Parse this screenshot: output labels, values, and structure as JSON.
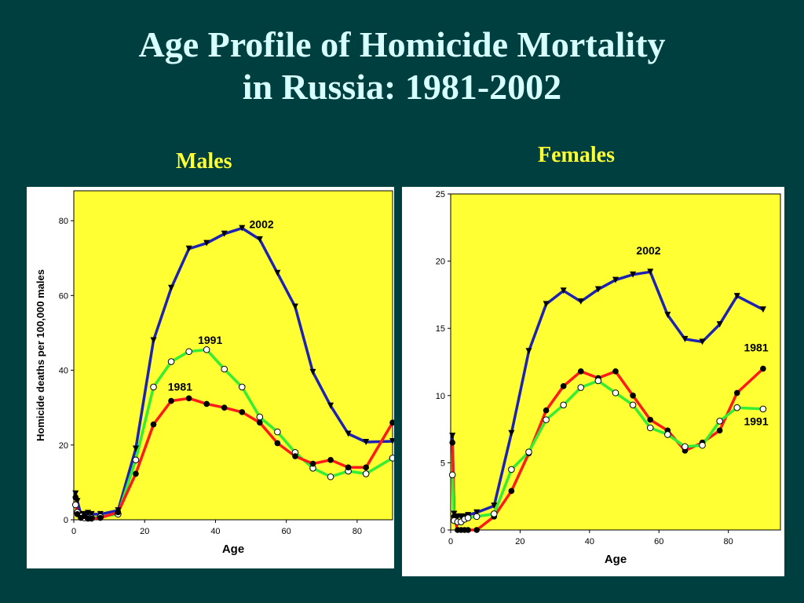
{
  "slide": {
    "title_line1": "Age Profile of Homicide Mortality",
    "title_line2": "in Russia: 1981-2002"
  },
  "chart_data": [
    {
      "type": "line",
      "subtitle": "Males",
      "xlabel": "Age",
      "ylabel": "Homicide deaths per 100,000 males",
      "xlim": [
        0,
        90
      ],
      "ylim": [
        0,
        88
      ],
      "xticks": [
        0,
        20,
        40,
        60,
        80
      ],
      "yticks": [
        0,
        20,
        40,
        60,
        80
      ],
      "plot_bg": "#ffff33",
      "series": [
        {
          "name": "2002",
          "color": "#1e22b4",
          "marker": "triangle-down",
          "x": [
            0.5,
            1,
            2,
            3,
            4,
            5,
            7.5,
            12.5,
            17.5,
            22.5,
            27.5,
            32.5,
            37.5,
            42.5,
            47.5,
            52.5,
            57.5,
            62.5,
            67.5,
            72.5,
            77.5,
            82.5,
            90
          ],
          "y": [
            7,
            5,
            1.5,
            1.5,
            1.8,
            1.5,
            1.5,
            2.5,
            19,
            48,
            62,
            72.5,
            74,
            76.5,
            78,
            75,
            66,
            57,
            39.5,
            30.5,
            23,
            20.8,
            21
          ]
        },
        {
          "name": "1991",
          "color": "#33ee33",
          "marker": "circle-open",
          "x": [
            0.5,
            1,
            2,
            3,
            4,
            5,
            7.5,
            12.5,
            17.5,
            22.5,
            27.5,
            32.5,
            37.5,
            42.5,
            47.5,
            52.5,
            57.5,
            62.5,
            67.5,
            72.5,
            77.5,
            82.5,
            90
          ],
          "y": [
            4,
            2,
            1,
            0.5,
            0.5,
            0.5,
            0.8,
            1.5,
            16,
            35.5,
            42.3,
            45,
            45.5,
            40.3,
            35.5,
            27.5,
            23.5,
            18,
            13.8,
            11.5,
            13,
            12.3,
            16.5
          ]
        },
        {
          "name": "1981",
          "color": "#ff1a1a",
          "marker": "circle-filled",
          "x": [
            0.5,
            1,
            2,
            3,
            4,
            5,
            7.5,
            12.5,
            17.5,
            22.5,
            27.5,
            32.5,
            37.5,
            42.5,
            47.5,
            52.5,
            57.5,
            62.5,
            67.5,
            72.5,
            77.5,
            82.5,
            90
          ],
          "y": [
            6,
            1.5,
            0.5,
            1,
            0.3,
            0.3,
            0.5,
            2,
            12.3,
            25.5,
            31.8,
            32.5,
            31,
            30,
            28.8,
            26,
            20.5,
            17,
            15,
            16,
            14,
            14,
            26
          ]
        }
      ],
      "annotations": [
        {
          "text": "2002",
          "x": 53,
          "y": 78
        },
        {
          "text": "1991",
          "x": 38.5,
          "y": 47
        },
        {
          "text": "1981",
          "x": 30,
          "y": 34.5
        }
      ]
    },
    {
      "type": "line",
      "subtitle": "Females",
      "xlabel": "Age",
      "ylabel": "",
      "xlim": [
        0,
        95
      ],
      "ylim": [
        0,
        25
      ],
      "xticks": [
        0,
        20,
        40,
        60,
        80
      ],
      "yticks": [
        0,
        5,
        10,
        15,
        20,
        25
      ],
      "plot_bg": "#ffff33",
      "series": [
        {
          "name": "2002",
          "color": "#1e22b4",
          "marker": "triangle-down",
          "x": [
            0.5,
            1,
            2,
            3,
            4,
            5,
            7.5,
            12.5,
            17.5,
            22.5,
            27.5,
            32.5,
            37.5,
            42.5,
            47.5,
            52.5,
            57.5,
            62.5,
            67.5,
            72.5,
            77.5,
            82.5,
            90
          ],
          "y": [
            7,
            1.2,
            1,
            1,
            1,
            1.1,
            1.3,
            1.8,
            7.2,
            13.3,
            16.8,
            17.8,
            17,
            17.9,
            18.6,
            19,
            19.2,
            16,
            14.2,
            14,
            15.3,
            17.4,
            16.4
          ]
        },
        {
          "name": "1981",
          "color": "#ff1a1a",
          "marker": "circle-filled",
          "x": [
            0.5,
            1,
            2,
            3,
            4,
            5,
            7.5,
            12.5,
            17.5,
            22.5,
            27.5,
            32.5,
            37.5,
            42.5,
            47.5,
            52.5,
            57.5,
            62.5,
            67.5,
            72.5,
            77.5,
            82.5,
            90
          ],
          "y": [
            6.5,
            1,
            0,
            0,
            0,
            0,
            0,
            1,
            2.9,
            5.7,
            8.9,
            10.7,
            11.8,
            11.3,
            11.8,
            10,
            8.2,
            7.4,
            5.9,
            6.5,
            7.4,
            10.2,
            12
          ]
        },
        {
          "name": "1991",
          "color": "#33ee33",
          "marker": "circle-open",
          "x": [
            0.5,
            1,
            2,
            3,
            4,
            5,
            7.5,
            12.5,
            17.5,
            22.5,
            27.5,
            32.5,
            37.5,
            42.5,
            47.5,
            52.5,
            57.5,
            62.5,
            67.5,
            72.5,
            77.5,
            82.5,
            90
          ],
          "y": [
            4.1,
            0.7,
            0.6,
            0.6,
            0.8,
            0.9,
            1,
            1.2,
            4.5,
            5.8,
            8.2,
            9.3,
            10.6,
            11.1,
            10.2,
            9.3,
            7.6,
            7.1,
            6.2,
            6.3,
            8.1,
            9.1,
            9
          ]
        }
      ],
      "annotations": [
        {
          "text": "2002",
          "x": 57,
          "y": 20.5
        },
        {
          "text": "1981",
          "x": 88,
          "y": 13.3
        },
        {
          "text": "1991",
          "x": 88,
          "y": 7.8
        }
      ]
    }
  ]
}
